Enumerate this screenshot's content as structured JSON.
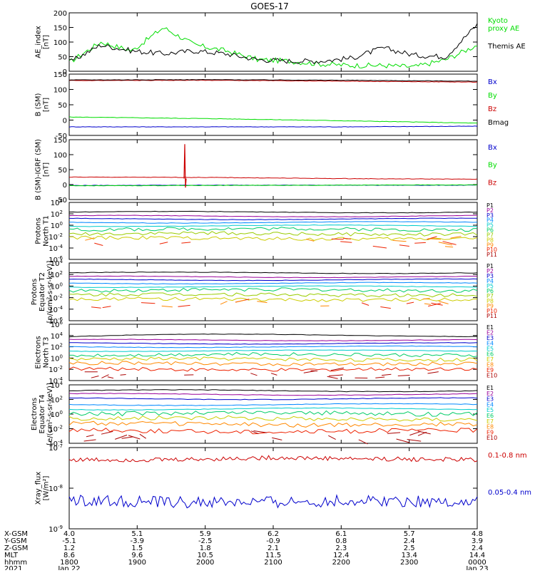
{
  "title": "GOES-17",
  "chart_data": [
    {
      "type": "line",
      "ylabel": "AE_index\n[nT]",
      "ylim": [
        0,
        200
      ],
      "yticks": [
        0,
        50,
        100,
        150,
        200
      ],
      "yscale": "linear",
      "x": [
        "1800",
        "1830",
        "1900",
        "1930",
        "2000",
        "2030",
        "2100",
        "2130",
        "2200",
        "2230",
        "2300",
        "2330",
        "2350",
        "0000"
      ],
      "series": [
        {
          "name": "Kyoto\nproxy AE",
          "color": "#00dd00",
          "values": [
            30,
            100,
            70,
            150,
            90,
            70,
            40,
            35,
            25,
            20,
            20,
            15,
            40,
            90
          ]
        },
        {
          "name": "Themis AE",
          "color": "#000000",
          "values": [
            30,
            90,
            70,
            60,
            70,
            60,
            40,
            35,
            35,
            45,
            80,
            55,
            50,
            160
          ]
        }
      ]
    },
    {
      "type": "line",
      "ylabel": "B (SM)\n[nT]",
      "ylim": [
        -50,
        150
      ],
      "yticks": [
        -50,
        0,
        50,
        100,
        150
      ],
      "yscale": "linear",
      "series": [
        {
          "name": "Bx",
          "color": "#0000cc",
          "values": [
            -22,
            -22,
            -22,
            -20
          ]
        },
        {
          "name": "By",
          "color": "#00dd00",
          "values": [
            10,
            5,
            -2,
            -10
          ]
        },
        {
          "name": "Bz",
          "color": "#cc0000",
          "values": [
            129,
            130,
            127,
            124
          ]
        },
        {
          "name": "Bmag",
          "color": "#000000",
          "values": [
            131,
            132,
            130,
            127
          ]
        }
      ]
    },
    {
      "type": "line",
      "ylabel": "B (SM)-IGRF (SM)\n[nT]",
      "ylim": [
        -50,
        150
      ],
      "yticks": [
        -50,
        0,
        50,
        100,
        150
      ],
      "yscale": "linear",
      "series": [
        {
          "name": "Bx",
          "color": "#0000cc",
          "values": [
            -3,
            -2,
            -2,
            -2
          ]
        },
        {
          "name": "By",
          "color": "#00dd00",
          "values": [
            -4,
            -3,
            -2,
            -1
          ]
        },
        {
          "name": "Bz",
          "color": "#cc0000",
          "values": [
            25,
            24,
            20,
            18
          ]
        }
      ]
    },
    {
      "type": "line",
      "ylabel": "Protons\nNorth T1",
      "ylim": [
        -6,
        4
      ],
      "yticks": [
        "10^-6",
        "10^-4",
        "10^-2",
        "10^0",
        "10^2",
        "10^4"
      ],
      "yscale": "log",
      "legend": [
        "P1",
        "P2",
        "P3",
        "P4",
        "P5",
        "P6",
        "P7",
        "P8",
        "P9",
        "P10",
        "P11"
      ]
    },
    {
      "type": "line",
      "ylabel": "Protons\nEquator T2\n[p/(cm²-s-sr-keV)]",
      "ylim": [
        -6,
        4
      ],
      "yticks": [
        "10^-6",
        "10^-4",
        "10^-2",
        "10^0",
        "10^2",
        "10^4"
      ],
      "yscale": "log",
      "legend": [
        "P1",
        "P2",
        "P3",
        "P4",
        "P5",
        "P6",
        "P7",
        "P8",
        "P9",
        "P10",
        "P11"
      ]
    },
    {
      "type": "line",
      "ylabel": "Electrons\nNorth T3",
      "ylim": [
        -4,
        6
      ],
      "yticks": [
        "10^-4",
        "10^-2",
        "10^0",
        "10^2",
        "10^4",
        "10^6"
      ],
      "yscale": "log",
      "legend": [
        "E1",
        "E2",
        "E3",
        "E4",
        "E5",
        "E6",
        "E7",
        "E8",
        "E9",
        "E10"
      ]
    },
    {
      "type": "line",
      "ylabel": "Electrons\nEquator T4\n[e/(cm²-s-sr-keV)]",
      "ylim": [
        -4,
        4
      ],
      "yticks": [
        "10^-4",
        "10^-2",
        "10^0",
        "10^2",
        "10^4"
      ],
      "yscale": "log",
      "legend": [
        "E1",
        "E2",
        "E3",
        "E4",
        "E5",
        "E6",
        "E7",
        "E8",
        "E9",
        "E10"
      ]
    },
    {
      "type": "line",
      "ylabel": "Xray_flux\n[W/m²]",
      "ylim": [
        -9,
        -7
      ],
      "yticks": [
        "10^-9",
        "10^-8",
        "10^-7"
      ],
      "yscale": "log",
      "series": [
        {
          "name": "0.1-0.8 nm",
          "color": "#cc0000",
          "values": [
            -7.3,
            -7.3,
            -7.25,
            -7.28,
            -7.3
          ]
        },
        {
          "name": "0.05-0.4 nm",
          "color": "#0000cc",
          "values": [
            -8.3,
            -8.35,
            -8.35,
            -8.3,
            -8.35
          ]
        }
      ]
    }
  ],
  "footer": {
    "row_labels": [
      "X-GSM",
      "Y-GSM",
      "Z-GSM",
      "MLT",
      "hhmm",
      "2021"
    ],
    "columns": [
      {
        "x": "4.0",
        "y": "-5.1",
        "z": "1.2",
        "mlt": "8.6",
        "hhmm": "1800",
        "date": "Jan 22"
      },
      {
        "x": "5.1",
        "y": "-3.9",
        "z": "1.5",
        "mlt": "9.6",
        "hhmm": "1900",
        "date": ""
      },
      {
        "x": "5.9",
        "y": "-2.5",
        "z": "1.8",
        "mlt": "10.5",
        "hhmm": "2000",
        "date": ""
      },
      {
        "x": "6.2",
        "y": "-0.9",
        "z": "2.1",
        "mlt": "11.5",
        "hhmm": "2100",
        "date": ""
      },
      {
        "x": "6.1",
        "y": "0.8",
        "z": "2.3",
        "mlt": "12.4",
        "hhmm": "2200",
        "date": ""
      },
      {
        "x": "5.7",
        "y": "2.4",
        "z": "2.5",
        "mlt": "13.4",
        "hhmm": "2300",
        "date": ""
      },
      {
        "x": "4.8",
        "y": "3.9",
        "z": "2.4",
        "mlt": "14.4",
        "hhmm": "0000",
        "date": "Jan 23"
      }
    ]
  },
  "colors": {
    "p_colors": [
      "#000000",
      "#990099",
      "#0000cc",
      "#0088ff",
      "#00cccc",
      "#00cc66",
      "#99cc00",
      "#cccc00",
      "#ff8800",
      "#ee2200",
      "#aa0000"
    ],
    "e_colors": [
      "#000000",
      "#990099",
      "#0000cc",
      "#0088ff",
      "#00cccc",
      "#00cc66",
      "#cccc00",
      "#ff8800",
      "#ee2200",
      "#aa0000"
    ]
  }
}
